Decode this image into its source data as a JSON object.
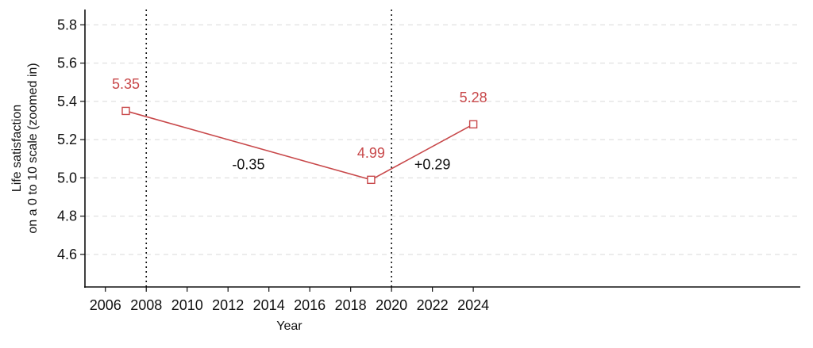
{
  "chart_data": {
    "type": "line",
    "title": "",
    "xlabel": "Year",
    "ylabel_lines": [
      "Life satisfaction",
      "on a 0 to 10 scale (zoomed in)"
    ],
    "xlim": [
      2005,
      2040
    ],
    "ylim": [
      4.43,
      5.88
    ],
    "x_ticks": [
      2006,
      2008,
      2010,
      2012,
      2014,
      2016,
      2018,
      2020,
      2022,
      2024
    ],
    "y_ticks": [
      4.6,
      4.8,
      5.0,
      5.2,
      5.4,
      5.6,
      5.8
    ],
    "y_tick_labels": [
      "4.6",
      "4.8",
      "5.0",
      "5.2",
      "5.4",
      "5.6",
      "5.8"
    ],
    "grid": "horizontal dashed",
    "series": [
      {
        "color": "#c8484a",
        "points": [
          {
            "x": 2007,
            "y": 5.35,
            "label": "5.35"
          },
          {
            "x": 2019,
            "y": 4.99,
            "label": "4.99"
          },
          {
            "x": 2024,
            "y": 5.28,
            "label": "5.28"
          }
        ]
      }
    ],
    "vlines": [
      2008,
      2020
    ],
    "annotations": [
      {
        "text": "-0.35",
        "x": 2013,
        "y": 5.045
      },
      {
        "text": "+0.29",
        "x": 2022,
        "y": 5.045
      }
    ]
  }
}
